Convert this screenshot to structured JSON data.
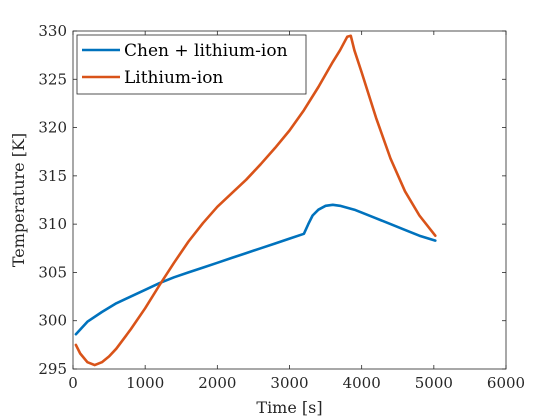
{
  "chart_data": {
    "type": "line",
    "xlabel": "Time [s]",
    "ylabel": "Temperature [K]",
    "xlim": [
      0,
      6000
    ],
    "ylim": [
      295,
      330
    ],
    "xticks": [
      0,
      1000,
      2000,
      3000,
      4000,
      5000,
      6000
    ],
    "yticks": [
      295,
      300,
      305,
      310,
      315,
      320,
      325,
      330
    ],
    "grid": false,
    "legend_position": "top-left",
    "series": [
      {
        "name": "Chen + lithium-ion",
        "color": "#0072BD",
        "x": [
          40,
          200,
          400,
          600,
          800,
          1000,
          1200,
          1400,
          1600,
          1800,
          2000,
          2200,
          2400,
          2600,
          2800,
          3000,
          3200,
          3260,
          3320,
          3400,
          3500,
          3600,
          3700,
          3800,
          3900,
          4000,
          4200,
          4400,
          4600,
          4800,
          5020
        ],
        "values": [
          298.6,
          299.9,
          300.9,
          301.8,
          302.5,
          303.2,
          303.9,
          304.5,
          305.0,
          305.5,
          306.0,
          306.5,
          307.0,
          307.5,
          308.0,
          308.5,
          309.0,
          310.0,
          310.9,
          311.5,
          311.9,
          312.0,
          311.9,
          311.7,
          311.5,
          311.2,
          310.6,
          310.0,
          309.4,
          308.8,
          308.3
        ]
      },
      {
        "name": "Lithium-ion",
        "color": "#D95319",
        "x": [
          40,
          100,
          200,
          300,
          400,
          500,
          600,
          800,
          1000,
          1200,
          1400,
          1600,
          1800,
          2000,
          2200,
          2400,
          2600,
          2800,
          3000,
          3200,
          3400,
          3600,
          3700,
          3800,
          3850,
          3900,
          4000,
          4200,
          4400,
          4600,
          4800,
          5020
        ],
        "values": [
          297.5,
          296.6,
          295.7,
          295.4,
          295.7,
          296.3,
          297.1,
          299.1,
          301.3,
          303.7,
          306.0,
          308.2,
          310.1,
          311.8,
          313.2,
          314.6,
          316.2,
          317.9,
          319.7,
          321.8,
          324.2,
          326.8,
          328.0,
          329.4,
          329.5,
          328.0,
          325.7,
          321.0,
          316.8,
          313.4,
          310.9,
          308.8
        ]
      }
    ]
  }
}
